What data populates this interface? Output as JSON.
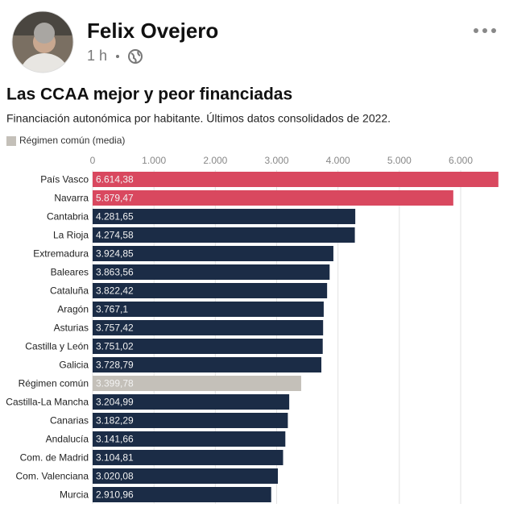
{
  "post": {
    "author": "Felix Ovejero",
    "time": "1 h"
  },
  "chart_data": {
    "type": "bar",
    "orientation": "horizontal",
    "title": "Las CCAA mejor y peor financiadas",
    "subtitle": "Financiación autonómica por habitante. Últimos datos consolidados de 2022.",
    "legend": [
      {
        "name": "Régimen común (media)",
        "color": "#c4c0b9"
      }
    ],
    "categories": [
      "País Vasco",
      "Navarra",
      "Cantabria",
      "La Rioja",
      "Extremadura",
      "Baleares",
      "Cataluña",
      "Aragón",
      "Asturias",
      "Castilla y León",
      "Galicia",
      "Régimen común",
      "Castilla-La Mancha",
      "Canarias",
      "Andalucía",
      "Com. de Madrid",
      "Com. Valenciana",
      "Murcia"
    ],
    "values": [
      6614.38,
      5879.47,
      4281.65,
      4274.58,
      3924.85,
      3863.56,
      3822.42,
      3767.1,
      3757.42,
      3751.02,
      3728.79,
      3399.78,
      3204.99,
      3182.29,
      3141.66,
      3104.81,
      3020.08,
      2910.96
    ],
    "value_labels": [
      "6.614,38",
      "5.879,47",
      "4.281,65",
      "4.274,58",
      "3.924,85",
      "3.863,56",
      "3.822,42",
      "3.767,1",
      "3.757,42",
      "3.751,02",
      "3.728,79",
      "3.399,78",
      "3.204,99",
      "3.182,29",
      "3.141,66",
      "3.104,81",
      "3.020,08",
      "2.910,96"
    ],
    "colors": [
      "#d9485f",
      "#d9485f",
      "#1b2c46",
      "#1b2c46",
      "#1b2c46",
      "#1b2c46",
      "#1b2c46",
      "#1b2c46",
      "#1b2c46",
      "#1b2c46",
      "#1b2c46",
      "#c4c0b9",
      "#1b2c46",
      "#1b2c46",
      "#1b2c46",
      "#1b2c46",
      "#1b2c46",
      "#1b2c46"
    ],
    "xlim": [
      0,
      6630
    ],
    "xticks": [
      0,
      {
        "value": 1000,
        "label": "1.000"
      },
      {
        "value": 2000,
        "label": "2.000"
      },
      {
        "value": 3000,
        "label": "3.000"
      },
      {
        "value": 4000,
        "label": "4.000"
      },
      {
        "value": 5000,
        "label": "5.000"
      },
      {
        "value": 6000,
        "label": "6.000"
      }
    ],
    "grid": true
  }
}
